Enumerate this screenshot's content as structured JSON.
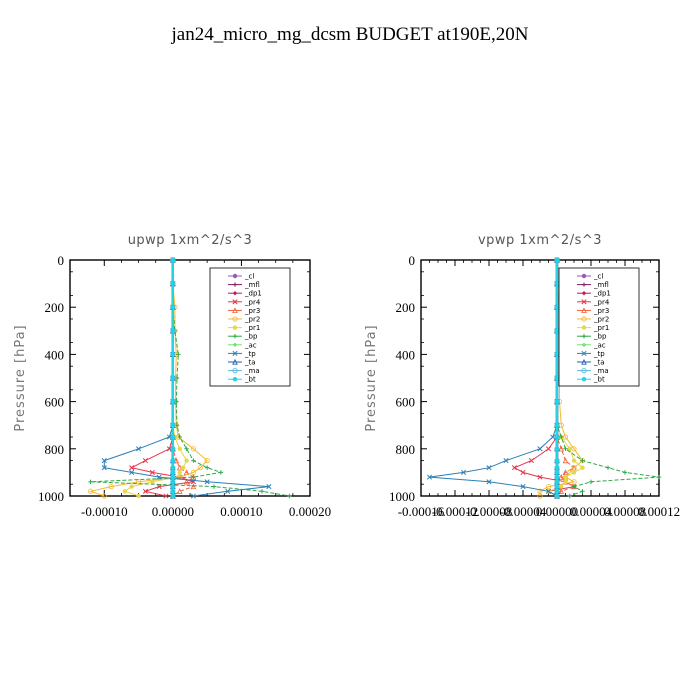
{
  "title": "jan24_micro_mg_dcsm  BUDGET at190E,20N",
  "legend_names": [
    "_cl",
    "_mfl",
    "_dp1",
    "_pr4",
    "_pr3",
    "_pr2",
    "_pr1",
    "_bp",
    "_ac",
    "_tp",
    "_ta",
    "_ma",
    "_bt"
  ],
  "colors": {
    "_cl": "#9b59b6",
    "_mfl": "#7b1a5c",
    "_dp1": "#c2185b",
    "_pr4": "#e8334a",
    "_pr3": "#f0603c",
    "_pr2": "#f5b82e",
    "_pr1": "#e8d64a",
    "_bp": "#2ea84a",
    "_ac": "#6ee36e",
    "_tp": "#2a7fb8",
    "_ta": "#1f5fa8",
    "_ma": "#56b4d8",
    "_bt": "#22d3e0"
  },
  "chart_data": [
    {
      "type": "line",
      "title": "upwp   1xm^2/s^3",
      "ylabel": "Pressure [hPa]",
      "ylim": [
        1000,
        0
      ],
      "xlim": [
        -0.00015,
        0.0002
      ],
      "yticks": [
        0,
        200,
        400,
        600,
        800,
        1000
      ],
      "ytick_labels": [
        "0",
        "200",
        "400",
        "600",
        "800",
        "1000"
      ],
      "xticks": [
        -0.0001,
        0,
        0.0001,
        0.0002
      ],
      "xtick_labels": [
        "-0.00010",
        "0.00000",
        "0.00010",
        "0.00020"
      ],
      "legend_position": "top-right",
      "y": [
        0,
        100,
        200,
        300,
        400,
        500,
        600,
        700,
        750,
        800,
        850,
        880,
        900,
        920,
        940,
        960,
        980,
        1000
      ],
      "series": [
        {
          "name": "_cl",
          "values": [
            0,
            0,
            0,
            0,
            0,
            0,
            0,
            0,
            0,
            0,
            0,
            0,
            0,
            0,
            0,
            0,
            0,
            0
          ]
        },
        {
          "name": "_mfl",
          "values": [
            0,
            0,
            0,
            0,
            0,
            0,
            0,
            0,
            0,
            0,
            0,
            0,
            0,
            0,
            0,
            0,
            0,
            0
          ]
        },
        {
          "name": "_dp1",
          "values": [
            0,
            0,
            0,
            0,
            0,
            0,
            0,
            0,
            0,
            0,
            0,
            0,
            0,
            0,
            0,
            0,
            0,
            0
          ]
        },
        {
          "name": "_pr4",
          "values": [
            0,
            0,
            0,
            0,
            0,
            0,
            0,
            0,
            0,
            -5e-06,
            -4e-05,
            -6e-05,
            -3e-05,
            1e-05,
            3e-05,
            -2e-05,
            -4e-05,
            -1e-05
          ]
        },
        {
          "name": "_pr3",
          "values": [
            0,
            0,
            0,
            0,
            0,
            0,
            0,
            0,
            0,
            0,
            5e-06,
            1e-05,
            2e-05,
            3e-05,
            2e-05,
            3e-05,
            1e-05,
            0
          ]
        },
        {
          "name": "_pr2",
          "values": [
            0,
            0,
            3e-06,
            3e-06,
            5e-06,
            4e-06,
            4e-06,
            5e-06,
            8e-06,
            3e-05,
            5e-05,
            4e-05,
            3e-05,
            1e-05,
            -5e-05,
            -9e-05,
            -0.00012,
            -0.0001
          ]
        },
        {
          "name": "_pr1",
          "values": [
            0,
            0,
            0,
            0,
            0,
            0,
            0,
            0,
            3e-06,
            1e-05,
            2e-05,
            1.5e-05,
            1e-05,
            8e-06,
            -3e-05,
            -6e-05,
            -7e-05,
            -5e-05
          ]
        },
        {
          "name": "_bp",
          "values": [
            0,
            0,
            0,
            3e-06,
            8e-06,
            6e-06,
            5e-06,
            6e-06,
            1e-05,
            2e-05,
            3e-05,
            5e-05,
            7e-05,
            3e-05,
            -0.00012,
            6e-05,
            0.00013,
            0.00017
          ]
        },
        {
          "name": "_ac",
          "values": [
            0,
            0,
            0,
            0,
            0,
            0,
            0,
            0,
            0,
            0,
            0,
            0,
            0,
            0,
            0,
            0,
            0,
            0
          ]
        },
        {
          "name": "_tp",
          "values": [
            0,
            0,
            0,
            0,
            0,
            0,
            0,
            0,
            -5e-06,
            -5e-05,
            -0.0001,
            -0.0001,
            -6e-05,
            -2e-05,
            5e-05,
            0.00014,
            8e-05,
            3e-05
          ]
        },
        {
          "name": "_ta",
          "values": [
            0,
            0,
            0,
            0,
            0,
            0,
            0,
            0,
            0,
            0,
            0,
            0,
            0,
            0,
            0,
            0,
            0,
            0
          ]
        },
        {
          "name": "_ma",
          "values": [
            0,
            0,
            0,
            0,
            0,
            0,
            0,
            0,
            0,
            0,
            0,
            0,
            0,
            0,
            0,
            0,
            0,
            0
          ]
        },
        {
          "name": "_bt",
          "values": [
            0,
            0,
            0,
            0,
            0,
            0,
            0,
            0,
            0,
            0,
            0,
            0,
            0,
            0,
            0,
            0,
            0,
            0
          ]
        }
      ]
    },
    {
      "type": "line",
      "title": "vpwp   1xm^2/s^3",
      "ylabel": "Pressure [hPa]",
      "ylim": [
        1000,
        0
      ],
      "xlim": [
        -0.00016,
        0.00012
      ],
      "yticks": [
        0,
        200,
        400,
        600,
        800,
        1000
      ],
      "ytick_labels": [
        "0",
        "200",
        "400",
        "600",
        "800",
        "1000"
      ],
      "xticks": [
        -0.00016,
        -0.00012,
        -8e-05,
        -4e-05,
        0,
        4e-05,
        8e-05,
        0.00012
      ],
      "xtick_labels": [
        "-0.00016",
        "-0.00012",
        "-0.00008",
        "-0.00004",
        "0.00000",
        "0.00004",
        "0.00008",
        "0.00012"
      ],
      "legend_position": "top-right",
      "y": [
        0,
        100,
        200,
        300,
        400,
        500,
        600,
        700,
        750,
        800,
        850,
        880,
        900,
        920,
        940,
        960,
        980,
        1000
      ],
      "series": [
        {
          "name": "_cl",
          "values": [
            0,
            0,
            0,
            0,
            0,
            0,
            0,
            0,
            0,
            0,
            0,
            0,
            0,
            0,
            0,
            0,
            0,
            0
          ]
        },
        {
          "name": "_mfl",
          "values": [
            0,
            0,
            0,
            0,
            0,
            0,
            0,
            0,
            0,
            0,
            0,
            0,
            0,
            0,
            0,
            0,
            0,
            0
          ]
        },
        {
          "name": "_dp1",
          "values": [
            0,
            0,
            0,
            0,
            0,
            0,
            0,
            0,
            0,
            0,
            0,
            0,
            0,
            0,
            0,
            0,
            0,
            0
          ]
        },
        {
          "name": "_pr4",
          "values": [
            0,
            0,
            0,
            0,
            0,
            0,
            0,
            0,
            0,
            -1e-05,
            -3e-05,
            -5e-05,
            -4e-05,
            -2e-05,
            1e-05,
            2e-05,
            -1e-05,
            0
          ]
        },
        {
          "name": "_pr3",
          "values": [
            0,
            0,
            0,
            0,
            0,
            0,
            0,
            0,
            0,
            5e-06,
            1e-05,
            2e-05,
            1e-05,
            5e-06,
            1e-05,
            2e-05,
            5e-06,
            0
          ]
        },
        {
          "name": "_pr2",
          "values": [
            0,
            0,
            3e-06,
            3e-06,
            3e-06,
            3e-06,
            3e-06,
            5e-06,
            1e-05,
            2e-05,
            3e-05,
            2e-05,
            1.5e-05,
            1e-05,
            2e-05,
            -1e-05,
            -2e-05,
            -2e-05
          ]
        },
        {
          "name": "_pr1",
          "values": [
            0,
            0,
            0,
            0,
            0,
            0,
            0,
            0,
            5e-06,
            1.5e-05,
            2e-05,
            3e-05,
            2e-05,
            1e-05,
            1e-05,
            5e-06,
            -1e-05,
            0
          ]
        },
        {
          "name": "_bp",
          "values": [
            0,
            0,
            0,
            0,
            0,
            0,
            0,
            0,
            5e-06,
            1e-05,
            3e-05,
            6e-05,
            8e-05,
            0.00012,
            4e-05,
            2e-05,
            3e-05,
            1.5e-05
          ]
        },
        {
          "name": "_ac",
          "values": [
            0,
            0,
            0,
            0,
            0,
            0,
            0,
            0,
            0,
            0,
            0,
            0,
            0,
            0,
            0,
            0,
            0,
            0
          ]
        },
        {
          "name": "_tp",
          "values": [
            0,
            0,
            0,
            0,
            0,
            0,
            0,
            0,
            -5e-06,
            -2e-05,
            -6e-05,
            -8e-05,
            -0.00011,
            -0.00015,
            -8e-05,
            -4e-05,
            -1e-05,
            0
          ]
        },
        {
          "name": "_ta",
          "values": [
            0,
            0,
            0,
            0,
            0,
            0,
            0,
            0,
            0,
            0,
            0,
            0,
            0,
            0,
            0,
            0,
            0,
            0
          ]
        },
        {
          "name": "_ma",
          "values": [
            0,
            0,
            0,
            0,
            0,
            0,
            0,
            0,
            0,
            0,
            0,
            0,
            0,
            0,
            0,
            0,
            0,
            0
          ]
        },
        {
          "name": "_bt",
          "values": [
            0,
            0,
            0,
            0,
            0,
            0,
            0,
            0,
            0,
            0,
            0,
            0,
            0,
            0,
            0,
            0,
            0,
            0
          ]
        }
      ]
    }
  ]
}
